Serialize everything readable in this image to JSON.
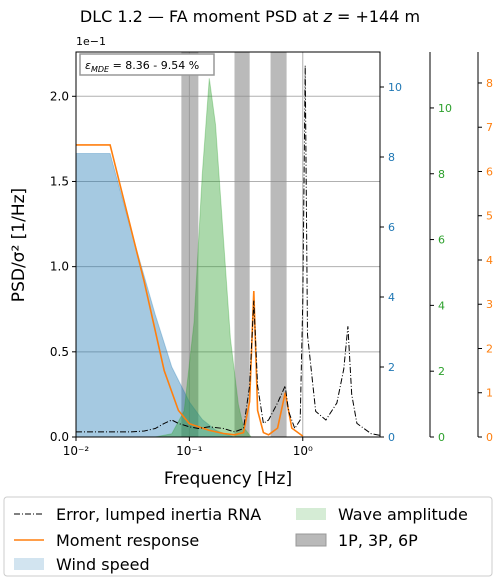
{
  "chart_data": {
    "type": "line",
    "title": [
      "DLC 1.2 — FA moment PSD at ",
      "z",
      " = +144 m"
    ],
    "xlabel": "Frequency [Hz]",
    "ylabel": "PSD/σ² [1/Hz]",
    "y_offset_label": "1e−1",
    "annotation": [
      "ε",
      "MDE",
      " = 8.36 - 9.54 %"
    ],
    "xscale": "log",
    "grid": true,
    "xlim": [
      0.01,
      4.8
    ],
    "xticks": [
      {
        "value": 0.01,
        "label": "10⁻²"
      },
      {
        "value": 0.1,
        "label": "10⁻¹"
      },
      {
        "value": 1,
        "label": "10⁰"
      }
    ],
    "ylim": [
      0,
      2.26
    ],
    "yticks": [
      {
        "value": 0,
        "label": "0.0"
      },
      {
        "value": 0.5,
        "label": "0.5"
      },
      {
        "value": 1,
        "label": "1.0"
      },
      {
        "value": 1.5,
        "label": "1.5"
      },
      {
        "value": 2,
        "label": "2.0"
      }
    ],
    "y2lim": [
      0,
      11.0
    ],
    "y2ticks": [
      0,
      2,
      4,
      6,
      8,
      10
    ],
    "y2color": "#1f77b4",
    "y3lim": [
      0,
      11.7
    ],
    "y3ticks": [
      0,
      2,
      4,
      6,
      8,
      10
    ],
    "y3color": "#2ca02c",
    "y4lim": [
      0,
      8.7
    ],
    "y4ticks": [
      0,
      1,
      2,
      3,
      4,
      5,
      6,
      7,
      8
    ],
    "y4color": "#ff7f0e",
    "series": [
      {
        "name": "Wind speed",
        "kind": "area",
        "axis": "y2",
        "color": "#1f77b4",
        "x": [
          0.01,
          0.02,
          0.03,
          0.05,
          0.07,
          0.1,
          0.13,
          0.17,
          0.2,
          0.25
        ],
        "values": [
          8.1,
          8.1,
          6.0,
          3.5,
          2.0,
          1.0,
          0.5,
          0.2,
          0.1,
          0
        ]
      },
      {
        "name": "Wave amplitude",
        "kind": "area",
        "axis": "y3",
        "color": "#2ca02c",
        "x": [
          0.05,
          0.07,
          0.09,
          0.11,
          0.13,
          0.15,
          0.17,
          0.2,
          0.23,
          0.27,
          0.3,
          0.35
        ],
        "values": [
          0,
          0.1,
          0.8,
          3.5,
          8.0,
          10.9,
          9.5,
          6.0,
          3.0,
          1.0,
          0.3,
          0
        ]
      },
      {
        "name": "Moment response",
        "kind": "line",
        "axis": "y4",
        "color": "#ff7f0e",
        "x": [
          0.01,
          0.02,
          0.04,
          0.06,
          0.08,
          0.1,
          0.15,
          0.2,
          0.25,
          0.3,
          0.34,
          0.37,
          0.4,
          0.45,
          0.5,
          0.6,
          0.7,
          0.8,
          1.0
        ],
        "values": [
          6.6,
          6.6,
          3.5,
          1.5,
          0.6,
          0.3,
          0.15,
          0.08,
          0.05,
          0.1,
          0.8,
          3.3,
          0.6,
          0.1,
          0.05,
          0.2,
          1.0,
          0.2,
          0.02
        ]
      },
      {
        "name": "Error, lumped inertia RNA",
        "kind": "dashline",
        "axis": "y",
        "color": "#000000",
        "x": [
          0.01,
          0.02,
          0.03,
          0.04,
          0.05,
          0.06,
          0.07,
          0.08,
          0.1,
          0.12,
          0.15,
          0.2,
          0.25,
          0.3,
          0.34,
          0.37,
          0.4,
          0.45,
          0.5,
          0.6,
          0.7,
          0.75,
          0.85,
          0.95,
          1.0,
          1.05,
          1.1,
          1.3,
          1.6,
          2.0,
          2.3,
          2.5,
          2.7,
          3.0,
          4.0,
          4.8
        ],
        "values": [
          0.03,
          0.03,
          0.03,
          0.035,
          0.05,
          0.08,
          0.1,
          0.08,
          0.06,
          0.05,
          0.06,
          0.05,
          0.03,
          0.05,
          0.3,
          0.8,
          0.3,
          0.08,
          0.1,
          0.2,
          0.3,
          0.15,
          0.05,
          0.1,
          0.8,
          2.18,
          0.6,
          0.15,
          0.1,
          0.2,
          0.4,
          0.65,
          0.25,
          0.08,
          0.02,
          0.01
        ]
      }
    ],
    "bands": {
      "name": "1P, 3P, 6P",
      "color": "#8c8c8c",
      "ranges": [
        [
          0.085,
          0.12
        ],
        [
          0.25,
          0.34
        ],
        [
          0.52,
          0.72
        ]
      ]
    }
  }
}
